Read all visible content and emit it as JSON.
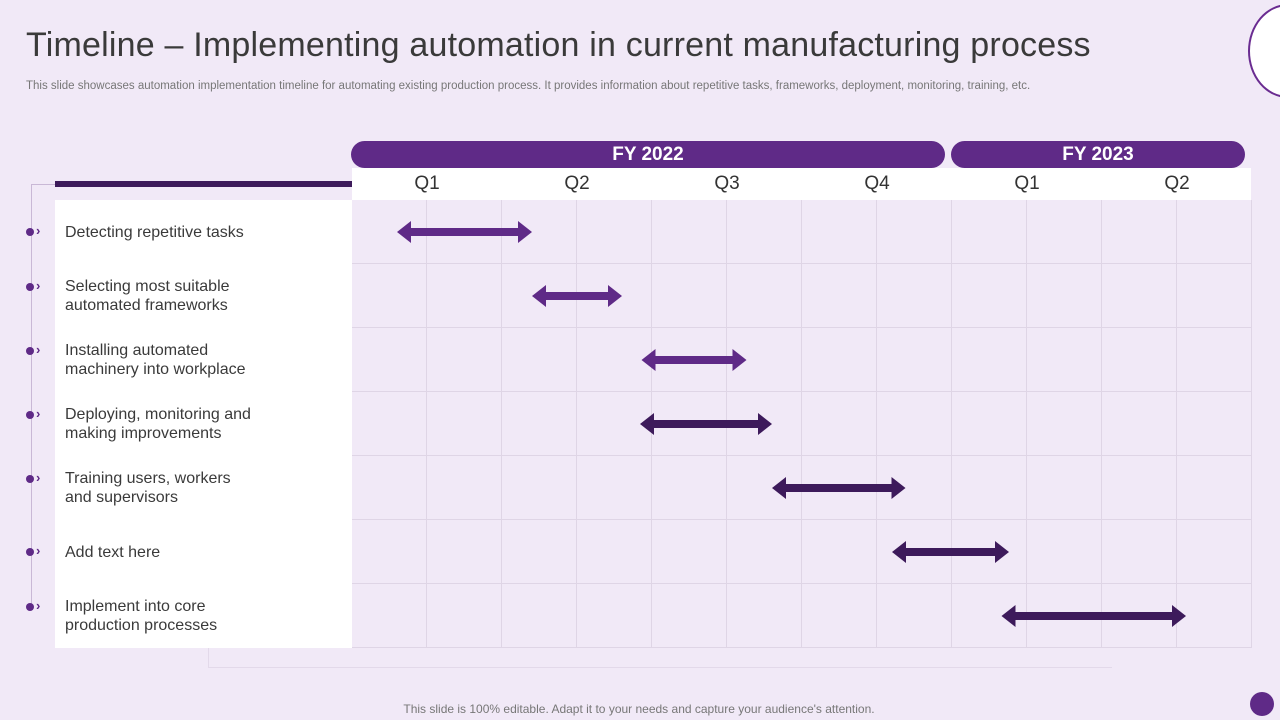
{
  "title": "Timeline – Implementing automation in current manufacturing process",
  "subtitle": "This slide showcases automation implementation timeline for automating existing production process. It provides information about repetitive tasks, frameworks, deployment, monitoring, training, etc.",
  "timeline": {
    "fiscal_years": [
      {
        "label": "FY 2022",
        "quarters": 4
      },
      {
        "label": "FY 2023",
        "quarters": 2
      }
    ],
    "quarters": [
      "Q1",
      "Q2",
      "Q3",
      "Q4",
      "Q1",
      "Q2"
    ],
    "tasks": [
      {
        "label_lines": [
          "Detecting repetitive tasks"
        ],
        "start_q": 0.3,
        "end_q": 1.2,
        "color": "#5f2a87"
      },
      {
        "label_lines": [
          "Selecting most suitable",
          "automated frameworks"
        ],
        "start_q": 1.2,
        "end_q": 1.8,
        "color": "#5f2a87"
      },
      {
        "label_lines": [
          "Installing  automated",
          "machinery  into workplace"
        ],
        "start_q": 1.93,
        "end_q": 2.63,
        "color": "#5f2a87"
      },
      {
        "label_lines": [
          "Deploying, monitoring and",
          "making improvements"
        ],
        "start_q": 1.92,
        "end_q": 2.8,
        "color": "#3d1a5b"
      },
      {
        "label_lines": [
          "Training users, workers",
          "and supervisors"
        ],
        "start_q": 2.8,
        "end_q": 3.69,
        "color": "#3d1a5b"
      },
      {
        "label_lines": [
          "Add text here"
        ],
        "start_q": 3.6,
        "end_q": 4.38,
        "color": "#3d1a5b"
      },
      {
        "label_lines": [
          "Implement  into core",
          "production processes"
        ],
        "start_q": 4.33,
        "end_q": 5.56,
        "color": "#3d1a5b"
      }
    ]
  },
  "footer": "This slide is 100% editable. Adapt it to your needs and capture your audience's attention.",
  "colors": {
    "accent": "#5f2a87",
    "accent_dark": "#3d1a5b",
    "background": "#f1e9f7"
  }
}
